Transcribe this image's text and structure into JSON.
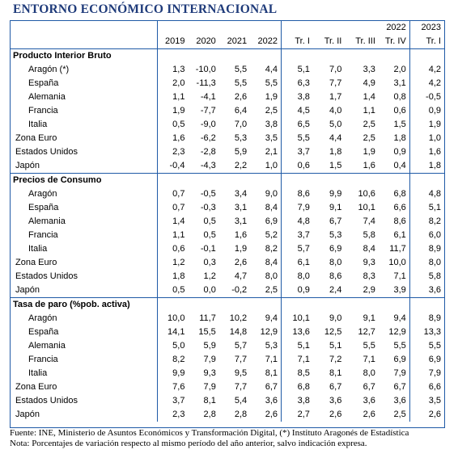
{
  "title": "ENTORNO ECONÓMICO INTERNACIONAL",
  "header": {
    "group_2022": "2022",
    "group_2023": "2023",
    "columns": [
      "2019",
      "2020",
      "2021",
      "2022",
      "Tr. I",
      "Tr. II",
      "Tr. III",
      "Tr. IV",
      "Tr. I"
    ]
  },
  "sections": [
    {
      "name": "Producto Interior Bruto",
      "rows": [
        {
          "label": "Aragón (*)",
          "values": [
            "1,3",
            "-10,0",
            "5,5",
            "4,4",
            "5,1",
            "7,0",
            "3,3",
            "2,0",
            "4,2"
          ]
        },
        {
          "label": "España",
          "values": [
            "2,0",
            "-11,3",
            "5,5",
            "5,5",
            "6,3",
            "7,7",
            "4,9",
            "3,1",
            "4,2"
          ]
        },
        {
          "label": "Alemania",
          "values": [
            "1,1",
            "-4,1",
            "2,6",
            "1,9",
            "3,8",
            "1,7",
            "1,4",
            "0,8",
            "-0,5"
          ]
        },
        {
          "label": "Francia",
          "values": [
            "1,9",
            "-7,7",
            "6,4",
            "2,5",
            "4,5",
            "4,0",
            "1,1",
            "0,6",
            "0,9"
          ]
        },
        {
          "label": "Italia",
          "values": [
            "0,5",
            "-9,0",
            "7,0",
            "3,8",
            "6,5",
            "5,0",
            "2,5",
            "1,5",
            "1,9"
          ]
        },
        {
          "label": "Zona Euro",
          "values": [
            "1,6",
            "-6,2",
            "5,3",
            "3,5",
            "5,5",
            "4,4",
            "2,5",
            "1,8",
            "1,0"
          ]
        },
        {
          "label": "Estados Unidos",
          "values": [
            "2,3",
            "-2,8",
            "5,9",
            "2,1",
            "3,7",
            "1,8",
            "1,9",
            "0,9",
            "1,6"
          ]
        },
        {
          "label": "Japón",
          "values": [
            "-0,4",
            "-4,3",
            "2,2",
            "1,0",
            "0,6",
            "1,5",
            "1,6",
            "0,4",
            "1,8"
          ]
        }
      ]
    },
    {
      "name": "Precios de Consumo",
      "rows": [
        {
          "label": "Aragón",
          "values": [
            "0,7",
            "-0,5",
            "3,4",
            "9,0",
            "8,6",
            "9,9",
            "10,6",
            "6,8",
            "4,8"
          ]
        },
        {
          "label": "España",
          "values": [
            "0,7",
            "-0,3",
            "3,1",
            "8,4",
            "7,9",
            "9,1",
            "10,1",
            "6,6",
            "5,1"
          ]
        },
        {
          "label": "Alemania",
          "values": [
            "1,4",
            "0,5",
            "3,1",
            "6,9",
            "4,8",
            "6,7",
            "7,4",
            "8,6",
            "8,2"
          ]
        },
        {
          "label": "Francia",
          "values": [
            "1,1",
            "0,5",
            "1,6",
            "5,2",
            "3,7",
            "5,3",
            "5,8",
            "6,1",
            "6,0"
          ]
        },
        {
          "label": "Italia",
          "values": [
            "0,6",
            "-0,1",
            "1,9",
            "8,2",
            "5,7",
            "6,9",
            "8,4",
            "11,7",
            "8,9"
          ]
        },
        {
          "label": "Zona Euro",
          "values": [
            "1,2",
            "0,3",
            "2,6",
            "8,4",
            "6,1",
            "8,0",
            "9,3",
            "10,0",
            "8,0"
          ]
        },
        {
          "label": "Estados Unidos",
          "values": [
            "1,8",
            "1,2",
            "4,7",
            "8,0",
            "8,0",
            "8,6",
            "8,3",
            "7,1",
            "5,8"
          ]
        },
        {
          "label": "Japón",
          "values": [
            "0,5",
            "0,0",
            "-0,2",
            "2,5",
            "0,9",
            "2,4",
            "2,9",
            "3,9",
            "3,6"
          ]
        }
      ]
    },
    {
      "name": "Tasa de paro (%pob. activa)",
      "rows": [
        {
          "label": "Aragón",
          "values": [
            "10,0",
            "11,7",
            "10,2",
            "9,4",
            "10,1",
            "9,0",
            "9,1",
            "9,4",
            "8,9"
          ]
        },
        {
          "label": "España",
          "values": [
            "14,1",
            "15,5",
            "14,8",
            "12,9",
            "13,6",
            "12,5",
            "12,7",
            "12,9",
            "13,3"
          ]
        },
        {
          "label": "Alemania",
          "values": [
            "5,0",
            "5,9",
            "5,7",
            "5,3",
            "5,1",
            "5,1",
            "5,5",
            "5,5",
            "5,5"
          ]
        },
        {
          "label": "Francia",
          "values": [
            "8,2",
            "7,9",
            "7,7",
            "7,1",
            "7,1",
            "7,2",
            "7,1",
            "6,9",
            "6,9"
          ]
        },
        {
          "label": "Italia",
          "values": [
            "9,9",
            "9,3",
            "9,5",
            "8,1",
            "8,5",
            "8,1",
            "8,0",
            "7,9",
            "7,9"
          ]
        },
        {
          "label": "Zona Euro",
          "values": [
            "7,6",
            "7,9",
            "7,7",
            "6,7",
            "6,8",
            "6,7",
            "6,7",
            "6,7",
            "6,6"
          ]
        },
        {
          "label": "Estados Unidos",
          "values": [
            "3,7",
            "8,1",
            "5,4",
            "3,6",
            "3,8",
            "3,6",
            "3,6",
            "3,6",
            "3,5"
          ]
        },
        {
          "label": "Japón",
          "values": [
            "2,3",
            "2,8",
            "2,8",
            "2,6",
            "2,7",
            "2,6",
            "2,6",
            "2,5",
            "2,6"
          ]
        }
      ]
    }
  ],
  "footer": {
    "source": "Fuente: INE, Ministerio de Asuntos Económicos y Transformación Digital, (*) Instituto Aragonés de Estadística",
    "note": "Nota: Porcentajes de variación respecto al mismo período del año anterior, salvo indicación expresa."
  }
}
